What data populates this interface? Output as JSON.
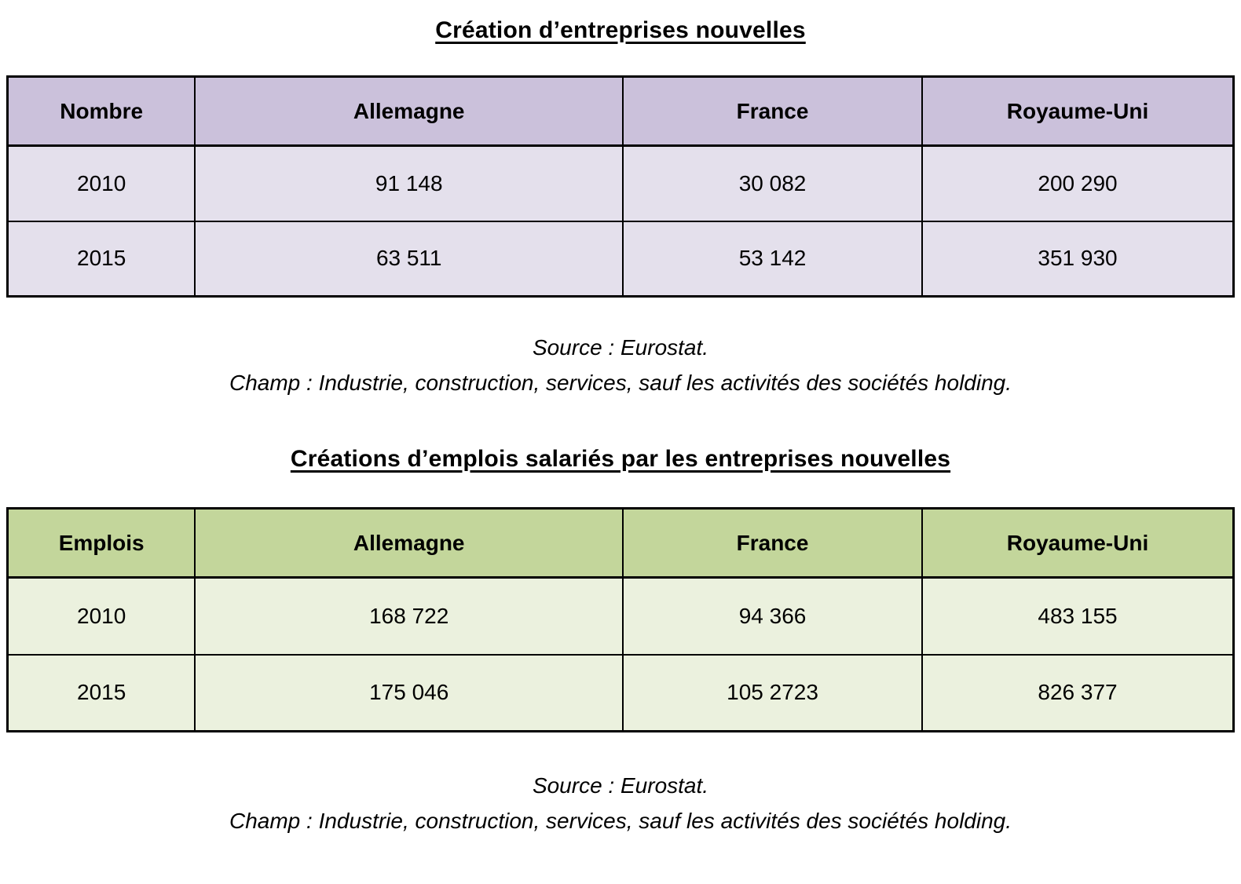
{
  "table1": {
    "title": "Création d’entreprises nouvelles",
    "header": [
      "Nombre",
      "Allemagne",
      "France",
      "Royaume-Uni"
    ],
    "rows": [
      [
        "2010",
        "91 148",
        "30 082",
        "200 290"
      ],
      [
        "2015",
        "63 511",
        "53 142",
        "351 930"
      ]
    ],
    "source": "Source : Eurostat.",
    "champ": "Champ : Industrie, construction, services, sauf les activités des sociétés holding.",
    "colors": {
      "header_bg": "#CBC1DB",
      "row_bg": "#E4E0EC",
      "border": "#000000"
    }
  },
  "table2": {
    "title": "Créations d’emplois salariés par les entreprises nouvelles",
    "header": [
      "Emplois",
      "Allemagne",
      "France",
      "Royaume-Uni"
    ],
    "rows": [
      [
        "2010",
        "168 722",
        "94 366",
        "483 155"
      ],
      [
        "2015",
        "175 046",
        "105 2723",
        "826 377"
      ]
    ],
    "source": "Source : Eurostat.",
    "champ": "Champ : Industrie, construction, services, sauf les activités des sociétés holding.",
    "colors": {
      "header_bg": "#C3D69B",
      "row_bg": "#EBF1DE",
      "border": "#000000"
    }
  }
}
